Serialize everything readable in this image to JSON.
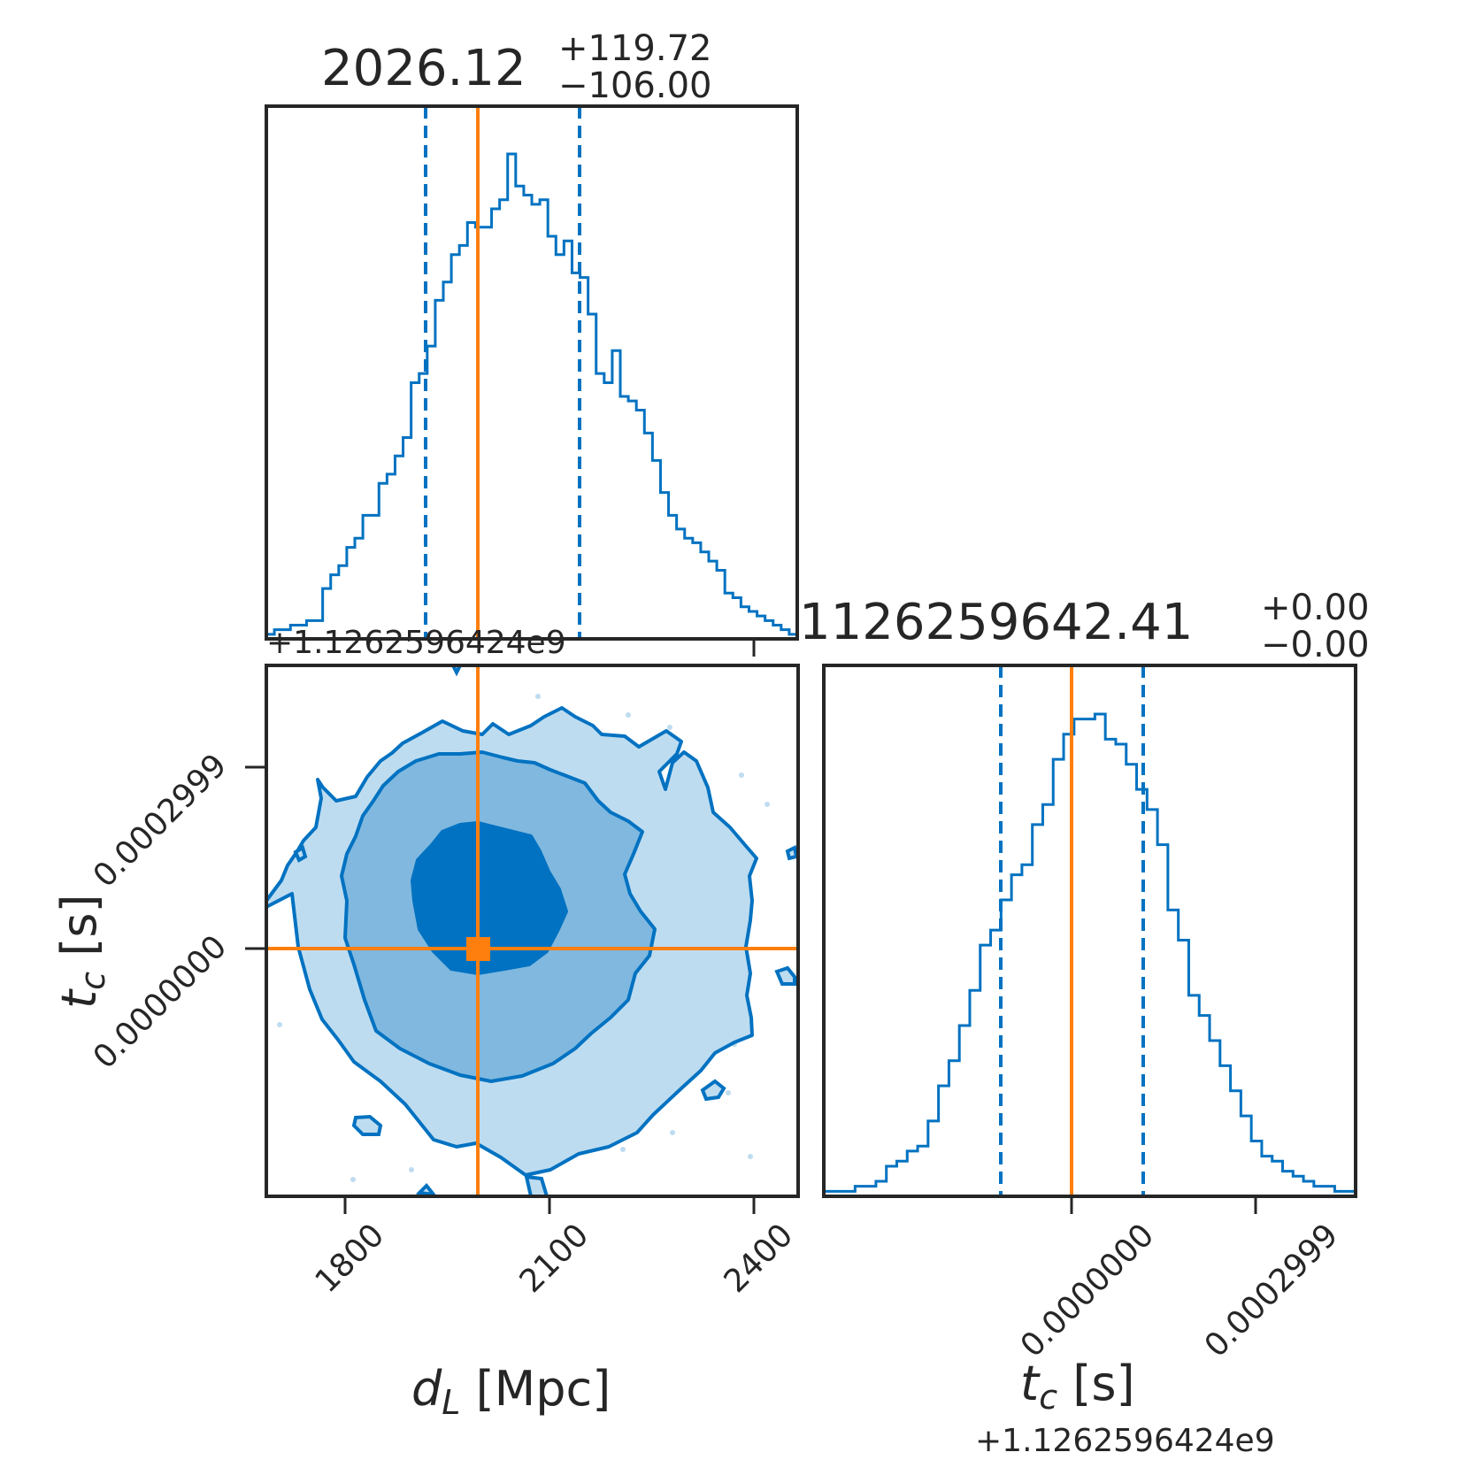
{
  "chart_data": {
    "type": "corner",
    "colors": {
      "posterior": "#0072c1",
      "truth": "#ff7f0e",
      "frame": "#262626",
      "level1": "#bedcf0",
      "level2": "#80b8df",
      "level3": "#0072c1"
    },
    "parameters": [
      {
        "name": "d_L",
        "label": "d",
        "label_sub": "L",
        "label_unit": " [Mpc]"
      },
      {
        "name": "t_c",
        "label": "t",
        "label_sub": "c",
        "label_unit": " [s]",
        "offset_text": "+1.1262596424e9"
      }
    ],
    "panels": [
      {
        "id": "hist-dL",
        "type": "histogram",
        "title": {
          "value": "2026.12",
          "plus": "+119.72",
          "minus": "−106.00"
        },
        "xlim": [
          1680,
          2440
        ],
        "x_ticks": [
          1800,
          2100,
          2400
        ],
        "quantiles": [
          1920.12,
          2146.84
        ],
        "truth": 2000,
        "bins": [
          1680,
          2440
        ],
        "counts": [
          1,
          2,
          2,
          3,
          3,
          4,
          4,
          11,
          14,
          16,
          20,
          22,
          27,
          27,
          34,
          36,
          40,
          44,
          56,
          58,
          64,
          74,
          78,
          84,
          86,
          91,
          90,
          90,
          94,
          96,
          106,
          99,
          97,
          95,
          96,
          88,
          84,
          87,
          80,
          79,
          71,
          58,
          56,
          63,
          53,
          52,
          50,
          45,
          39,
          32,
          27,
          24,
          22,
          21,
          19,
          17,
          15,
          10,
          9,
          7,
          6,
          5,
          4,
          3,
          2,
          1
        ]
      },
      {
        "id": "hist-tc",
        "type": "histogram",
        "title": {
          "value": "1126259642.41",
          "plus": "+0.00",
          "minus": "−0.00"
        },
        "xlim": [
          -0.0004,
          0.00045
        ],
        "x_ticks": [
          "0.0000000",
          "0.0002999"
        ],
        "x_tick_values": [
          0,
          0.0002999
        ],
        "quantiles": [
          -0.000115,
          0.00012
        ],
        "truth": 0,
        "offset_text": "+1.1262596424e9",
        "counts": [
          1,
          1,
          1,
          2,
          2,
          3,
          6,
          7,
          9,
          10,
          15,
          22,
          27,
          34,
          41,
          50,
          53,
          59,
          64,
          66,
          74,
          78,
          87,
          92,
          95,
          95,
          96,
          91,
          90,
          86,
          81,
          77,
          70,
          57,
          51,
          40,
          36,
          31,
          26,
          21,
          16,
          11,
          8,
          7,
          5,
          4,
          3,
          2,
          2,
          1,
          1
        ]
      },
      {
        "id": "joint",
        "type": "contour",
        "xlim": [
          1680,
          2440
        ],
        "ylim": [
          -0.0004,
          0.00045
        ],
        "x_ticks": [
          "1800",
          "2100",
          "2400"
        ],
        "y_ticks": [
          "0.0000000",
          "0.0002999"
        ],
        "y_tick_values": [
          0,
          0.0002999
        ],
        "truth": {
          "x": 2000,
          "y": 0
        },
        "offset_text": "+1.1262596424e9"
      }
    ]
  }
}
